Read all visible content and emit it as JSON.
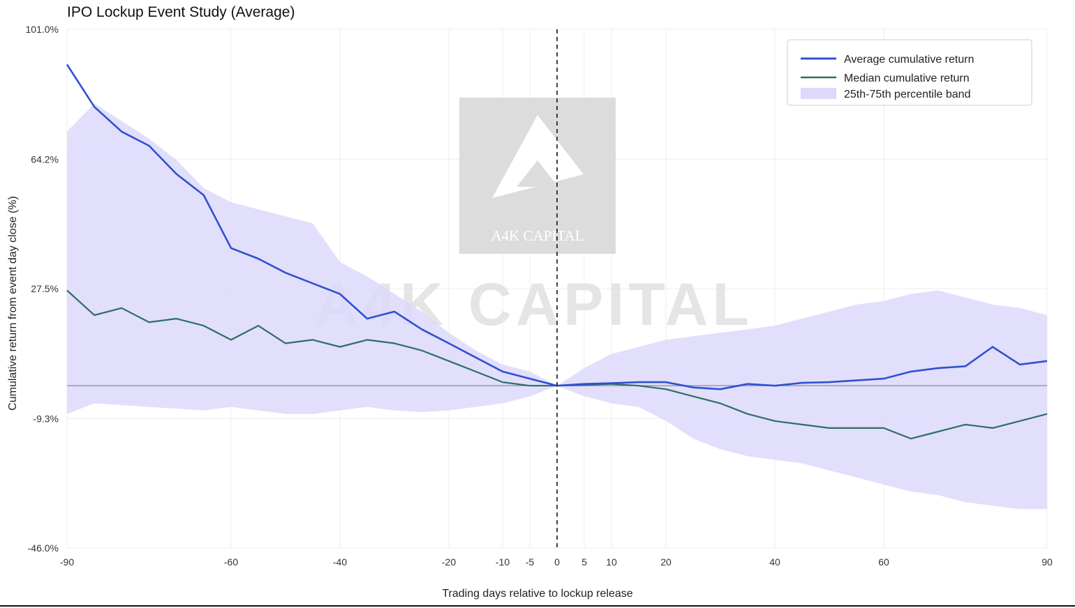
{
  "chart_data": {
    "type": "line",
    "title": "IPO Lockup Event Study (Average)",
    "xlabel": "Trading days relative to lockup release",
    "ylabel": "Cumulative return from event day close (%)",
    "xlim": [
      -90,
      90
    ],
    "ylim": [
      -46.0,
      101.0
    ],
    "x_ticks": [
      -90,
      -60,
      -40,
      -20,
      -10,
      -5,
      0,
      5,
      10,
      20,
      40,
      60,
      90
    ],
    "x_tick_labels": [
      "-90",
      "-60",
      "-40",
      "-20",
      "-10",
      "-5",
      "0",
      "5",
      "10",
      "20",
      "40",
      "60",
      "90"
    ],
    "y_ticks": [
      -46.0,
      -9.3,
      27.5,
      64.2,
      101.0
    ],
    "y_tick_labels": [
      "-46.0%",
      "-9.3%",
      "27.5%",
      "64.2%",
      "101.0%"
    ],
    "x_scale": "symlog",
    "reference_lines": {
      "horizontal_y": 0,
      "vertical_x": 0
    },
    "legend": [
      "Average cumulative return",
      "Median cumulative return",
      "25th-75th percentile band"
    ],
    "legend_position": "top-right",
    "colors": {
      "average": "#3050d0",
      "median": "#2e6e66",
      "band": "#dcd9fb",
      "zero_line": "#9a9aa6",
      "grid": "#ececec"
    },
    "series": [
      {
        "name": "Average cumulative return",
        "x": [
          -90,
          -85,
          -80,
          -75,
          -70,
          -65,
          -60,
          -55,
          -50,
          -45,
          -40,
          -35,
          -30,
          -25,
          -20,
          -15,
          -10,
          -5,
          0,
          5,
          10,
          15,
          20,
          25,
          30,
          35,
          40,
          45,
          50,
          55,
          60,
          65,
          70,
          75,
          80,
          85,
          90
        ],
        "y": [
          91,
          79,
          72,
          68,
          60,
          54,
          39,
          36,
          32,
          29,
          26,
          19,
          21,
          16,
          12,
          8,
          4,
          2,
          0,
          0.5,
          0.7,
          1,
          1,
          -0.5,
          -1,
          0.5,
          0,
          0.8,
          1,
          1.5,
          2,
          4,
          5,
          5.5,
          11,
          6,
          7
        ]
      },
      {
        "name": "Median cumulative return",
        "x": [
          -90,
          -85,
          -80,
          -75,
          -70,
          -65,
          -60,
          -55,
          -50,
          -45,
          -40,
          -35,
          -30,
          -25,
          -20,
          -15,
          -10,
          -5,
          0,
          5,
          10,
          15,
          20,
          25,
          30,
          35,
          40,
          45,
          50,
          55,
          60,
          65,
          70,
          75,
          80,
          85,
          90
        ],
        "y": [
          27,
          20,
          22,
          18,
          19,
          17,
          13,
          17,
          12,
          13,
          11,
          13,
          12,
          10,
          7,
          4,
          1,
          0,
          0,
          0.2,
          0.5,
          0,
          -1,
          -3,
          -5,
          -8,
          -10,
          -11,
          -12,
          -12,
          -12,
          -15,
          -13,
          -11,
          -12,
          -10,
          -8
        ]
      },
      {
        "name": "25th-75th percentile band",
        "x": [
          -90,
          -85,
          -80,
          -75,
          -70,
          -65,
          -60,
          -55,
          -50,
          -45,
          -40,
          -35,
          -30,
          -25,
          -20,
          -15,
          -10,
          -5,
          0,
          5,
          10,
          15,
          20,
          25,
          30,
          35,
          40,
          45,
          50,
          55,
          60,
          65,
          70,
          75,
          80,
          85,
          90
        ],
        "upper": [
          72,
          80,
          75,
          70,
          64,
          56,
          52,
          50,
          48,
          46,
          35,
          31,
          26,
          21,
          15,
          10,
          6,
          4,
          0,
          5,
          9,
          11,
          13,
          14,
          15,
          16,
          17,
          19,
          21,
          23,
          24,
          26,
          27,
          25,
          23,
          22,
          20
        ],
        "lower": [
          -8,
          -5,
          -5.5,
          -6,
          -6.5,
          -7,
          -6,
          -7,
          -8,
          -8,
          -7,
          -6,
          -7,
          -7.5,
          -7,
          -6,
          -5,
          -3,
          0,
          -3,
          -5,
          -6,
          -10,
          -15,
          -18,
          -20,
          -21,
          -22,
          -24,
          -26,
          -28,
          -30,
          -31,
          -33,
          -34,
          -35,
          -35
        ]
      }
    ]
  },
  "watermark": {
    "text": "A4K CAPITAL",
    "logo_text": "A4K CAPITAL"
  }
}
